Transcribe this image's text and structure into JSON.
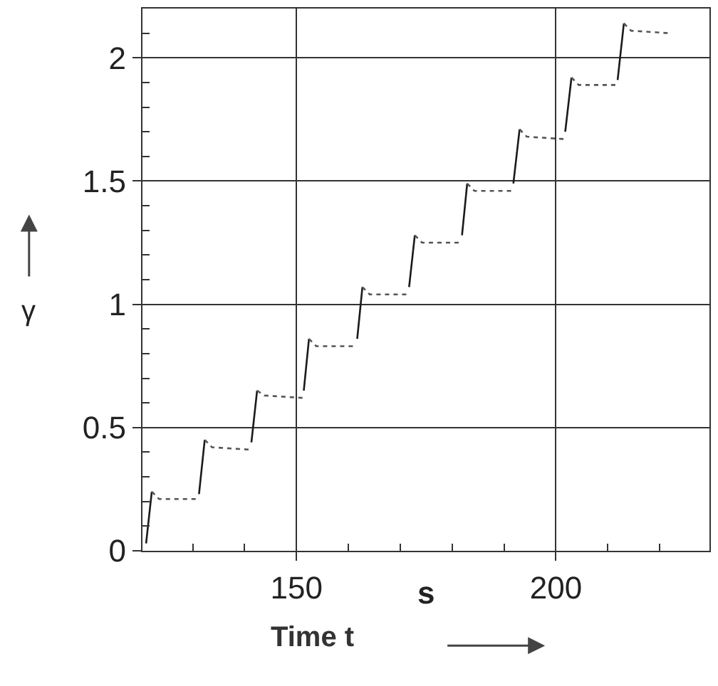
{
  "chart_data": {
    "type": "line",
    "xlabel": "Time t",
    "ylabel": "γ",
    "annotations": [
      "s"
    ],
    "xlim": [
      120.3,
      229.6
    ],
    "ylim": [
      0,
      2.2
    ],
    "xticks": [
      {
        "value": 130,
        "label": null
      },
      {
        "value": 140,
        "label": null
      },
      150,
      {
        "value": 160,
        "label": null
      },
      {
        "value": 170,
        "label": null
      },
      {
        "value": 180,
        "label": null
      },
      {
        "value": 190,
        "label": null
      },
      200,
      {
        "value": 210,
        "label": null
      },
      {
        "value": 220,
        "label": null
      }
    ],
    "yticks": [
      0,
      {
        "value": 0.1,
        "label": null
      },
      {
        "value": 0.2,
        "label": null
      },
      {
        "value": 0.3,
        "label": null
      },
      {
        "value": 0.4,
        "label": null
      },
      0.5,
      {
        "value": 0.6,
        "label": null
      },
      {
        "value": 0.7,
        "label": null
      },
      {
        "value": 0.8,
        "label": null
      },
      {
        "value": 0.9,
        "label": null
      },
      1,
      {
        "value": 1.1,
        "label": null
      },
      {
        "value": 1.2,
        "label": null
      },
      {
        "value": 1.3,
        "label": null
      },
      {
        "value": 1.4,
        "label": null
      },
      1.5,
      {
        "value": 1.6,
        "label": null
      },
      {
        "value": 1.7,
        "label": null
      },
      {
        "value": 1.8,
        "label": null
      },
      {
        "value": 1.9,
        "label": null
      },
      2,
      {
        "value": 2.1,
        "label": null
      }
    ],
    "grid": true,
    "marker": "none",
    "series": [
      {
        "color": "#1a1a1a",
        "line_style": "solid",
        "x": [
          121.0,
          122.1,
          null,
          131.2,
          132.3,
          null,
          141.3,
          142.4,
          null,
          151.4,
          152.4,
          null,
          161.7,
          162.7,
          null,
          171.7,
          172.8,
          null,
          181.9,
          182.9,
          null,
          191.8,
          193.0,
          null,
          201.8,
          203.0,
          null,
          211.9,
          213.1
        ],
        "values": [
          0.03,
          0.24,
          null,
          0.23,
          0.45,
          null,
          0.44,
          0.65,
          null,
          0.65,
          0.86,
          null,
          0.86,
          1.07,
          null,
          1.07,
          1.28,
          null,
          1.28,
          1.49,
          null,
          1.49,
          1.71,
          null,
          1.7,
          1.92,
          null,
          1.91,
          2.14
        ]
      },
      {
        "color": "#555555",
        "line_style": "dotted",
        "x": [
          122.1,
          123.5,
          131.2,
          null,
          132.3,
          133.7,
          141.3,
          null,
          142.4,
          143.8,
          151.5,
          null,
          152.4,
          153.8,
          161.7,
          null,
          162.7,
          164.1,
          171.4,
          null,
          172.8,
          174.2,
          181.9,
          null,
          182.9,
          184.3,
          191.8,
          null,
          193.0,
          194.4,
          201.8,
          null,
          203.0,
          204.4,
          211.9,
          null,
          213.1,
          214.5,
          221.9
        ],
        "values": [
          0.24,
          0.21,
          0.21,
          null,
          0.45,
          0.42,
          0.41,
          null,
          0.65,
          0.63,
          0.62,
          null,
          0.86,
          0.83,
          0.83,
          null,
          1.07,
          1.04,
          1.04,
          null,
          1.28,
          1.25,
          1.25,
          null,
          1.49,
          1.46,
          1.46,
          null,
          1.71,
          1.68,
          1.67,
          null,
          1.92,
          1.89,
          1.89,
          null,
          2.14,
          2.11,
          2.1
        ]
      }
    ]
  }
}
